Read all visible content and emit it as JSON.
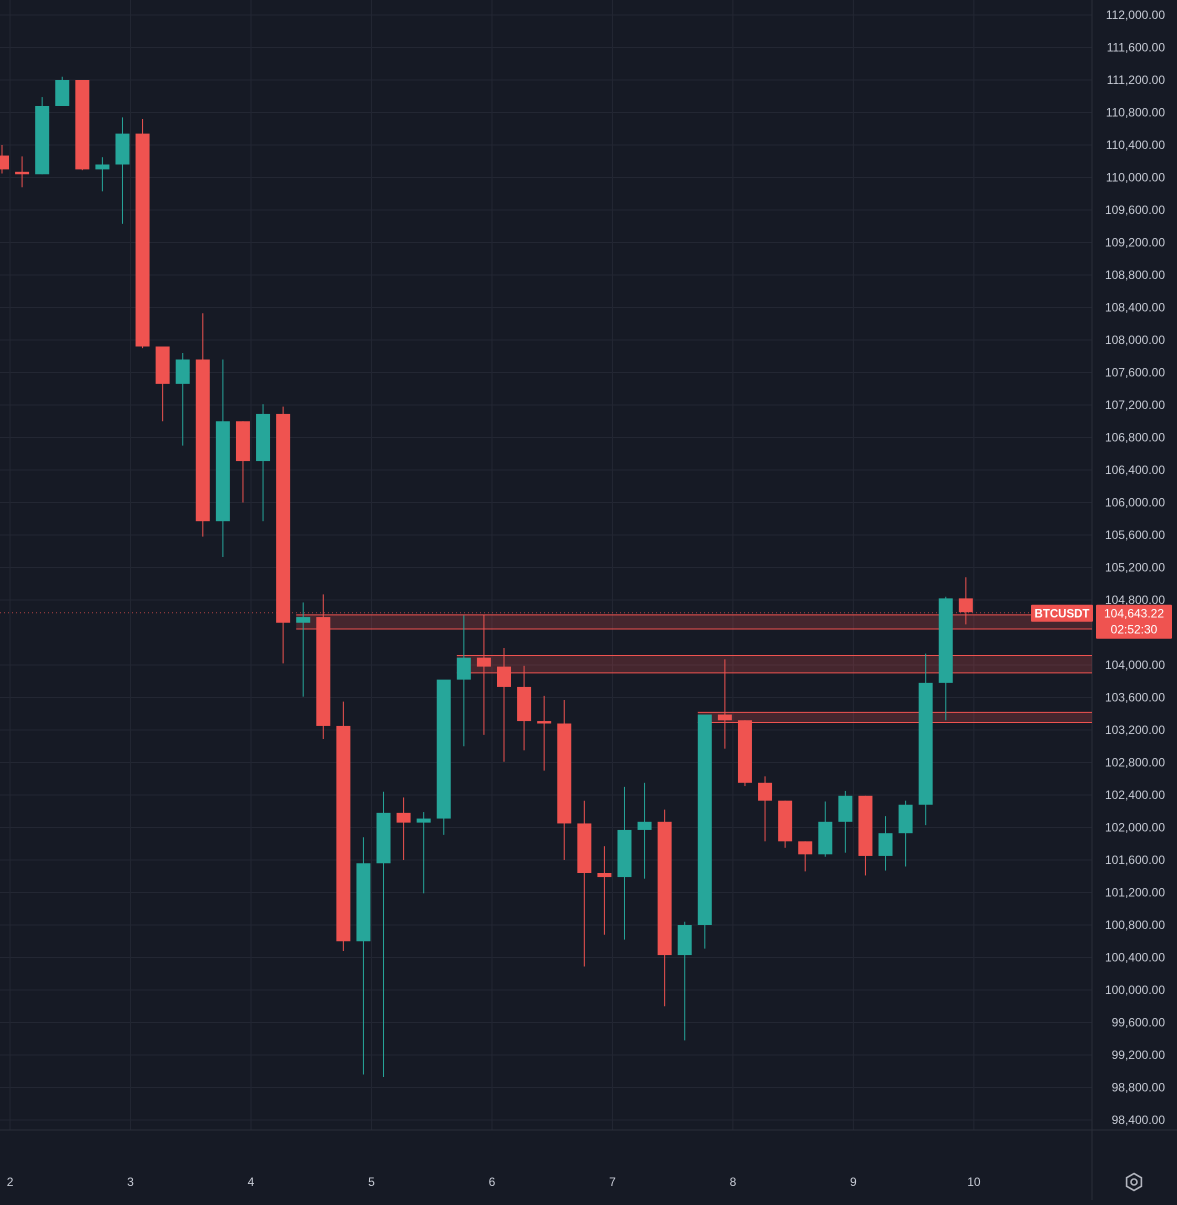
{
  "symbol": "BTCUSDT",
  "last_price_label": "104,643.22",
  "countdown": "02:52:30",
  "colors": {
    "background": "#161a25",
    "up": "#26a69a",
    "down": "#ef5350",
    "grid": "#232733",
    "axis_text": "#c8ccd6",
    "zone_fill": "rgba(239,83,80,0.22)",
    "zone_line": "#ef5350"
  },
  "settings_icon": "gear-icon",
  "chart_data": {
    "type": "candlestick",
    "grid": true,
    "price_axis": "right",
    "ylim": [
      98200,
      112050
    ],
    "x_ticks": [
      {
        "label": "2",
        "pos": 0.4
      },
      {
        "label": "3",
        "pos": 6.4
      },
      {
        "label": "4",
        "pos": 12.4
      },
      {
        "label": "5",
        "pos": 18.4
      },
      {
        "label": "6",
        "pos": 24.4
      },
      {
        "label": "7",
        "pos": 30.4
      },
      {
        "label": "8",
        "pos": 36.4
      },
      {
        "label": "9",
        "pos": 42.4
      },
      {
        "label": "10",
        "pos": 48.4
      }
    ],
    "y_ticks": [
      "112,000.00",
      "111,600.00",
      "111,200.00",
      "110,800.00",
      "110,400.00",
      "110,000.00",
      "109,600.00",
      "109,200.00",
      "108,800.00",
      "108,400.00",
      "108,000.00",
      "107,600.00",
      "107,200.00",
      "106,800.00",
      "106,400.00",
      "106,000.00",
      "105,600.00",
      "105,200.00",
      "104,800.00",
      "104,000.00",
      "103,600.00",
      "103,200.00",
      "102,800.00",
      "102,400.00",
      "102,000.00",
      "101,600.00",
      "101,200.00",
      "100,800.00",
      "100,400.00",
      "100,000.00",
      "99,600.00",
      "99,200.00",
      "98,800.00",
      "98,400.00"
    ],
    "candles": [
      {
        "o": 110270,
        "h": 110400,
        "l": 110050,
        "c": 110100
      },
      {
        "o": 110070,
        "h": 110260,
        "l": 109880,
        "c": 110040
      },
      {
        "o": 110040,
        "h": 110990,
        "l": 110040,
        "c": 110880
      },
      {
        "o": 110880,
        "h": 111240,
        "l": 110880,
        "c": 111200
      },
      {
        "o": 111200,
        "h": 111200,
        "l": 110090,
        "c": 110100
      },
      {
        "o": 110100,
        "h": 110250,
        "l": 109830,
        "c": 110160
      },
      {
        "o": 110160,
        "h": 110740,
        "l": 109430,
        "c": 110540
      },
      {
        "o": 110540,
        "h": 110720,
        "l": 107900,
        "c": 107920
      },
      {
        "o": 107920,
        "h": 107920,
        "l": 107000,
        "c": 107460
      },
      {
        "o": 107460,
        "h": 107840,
        "l": 106700,
        "c": 107760
      },
      {
        "o": 107760,
        "h": 108330,
        "l": 105580,
        "c": 105770
      },
      {
        "o": 105770,
        "h": 107760,
        "l": 105330,
        "c": 107000
      },
      {
        "o": 107000,
        "h": 107000,
        "l": 106000,
        "c": 106510
      },
      {
        "o": 106510,
        "h": 107210,
        "l": 105770,
        "c": 107090
      },
      {
        "o": 107090,
        "h": 107180,
        "l": 104020,
        "c": 104520
      },
      {
        "o": 104520,
        "h": 104770,
        "l": 103610,
        "c": 104590
      },
      {
        "o": 104590,
        "h": 104870,
        "l": 103090,
        "c": 103250
      },
      {
        "o": 103250,
        "h": 103550,
        "l": 100480,
        "c": 100600
      },
      {
        "o": 100600,
        "h": 101880,
        "l": 98960,
        "c": 101560
      },
      {
        "o": 101560,
        "h": 102440,
        "l": 98930,
        "c": 102180
      },
      {
        "o": 102180,
        "h": 102370,
        "l": 101600,
        "c": 102060
      },
      {
        "o": 102060,
        "h": 102190,
        "l": 101190,
        "c": 102110
      },
      {
        "o": 102110,
        "h": 103800,
        "l": 101910,
        "c": 103820
      },
      {
        "o": 103820,
        "h": 104610,
        "l": 103000,
        "c": 104090
      },
      {
        "o": 104090,
        "h": 104620,
        "l": 103140,
        "c": 103980
      },
      {
        "o": 103980,
        "h": 104210,
        "l": 102810,
        "c": 103730
      },
      {
        "o": 103730,
        "h": 103990,
        "l": 102950,
        "c": 103310
      },
      {
        "o": 103310,
        "h": 103620,
        "l": 102700,
        "c": 103280
      },
      {
        "o": 103280,
        "h": 103570,
        "l": 101600,
        "c": 102050
      },
      {
        "o": 102050,
        "h": 102330,
        "l": 100290,
        "c": 101440
      },
      {
        "o": 101440,
        "h": 101770,
        "l": 100680,
        "c": 101390
      },
      {
        "o": 101390,
        "h": 102500,
        "l": 100620,
        "c": 101970
      },
      {
        "o": 101970,
        "h": 102550,
        "l": 101370,
        "c": 102070
      },
      {
        "o": 102070,
        "h": 102220,
        "l": 99800,
        "c": 100430
      },
      {
        "o": 100430,
        "h": 100840,
        "l": 99380,
        "c": 100800
      },
      {
        "o": 100800,
        "h": 103380,
        "l": 100510,
        "c": 103390
      },
      {
        "o": 103390,
        "h": 104070,
        "l": 102970,
        "c": 103320
      },
      {
        "o": 103320,
        "h": 103320,
        "l": 102510,
        "c": 102550
      },
      {
        "o": 102550,
        "h": 102630,
        "l": 101830,
        "c": 102330
      },
      {
        "o": 102330,
        "h": 102330,
        "l": 101750,
        "c": 101830
      },
      {
        "o": 101830,
        "h": 101830,
        "l": 101460,
        "c": 101670
      },
      {
        "o": 101670,
        "h": 102320,
        "l": 101640,
        "c": 102070
      },
      {
        "o": 102070,
        "h": 102450,
        "l": 101690,
        "c": 102390
      },
      {
        "o": 102390,
        "h": 102390,
        "l": 101410,
        "c": 101650
      },
      {
        "o": 101650,
        "h": 102140,
        "l": 101470,
        "c": 101930
      },
      {
        "o": 101930,
        "h": 102330,
        "l": 101520,
        "c": 102280
      },
      {
        "o": 102280,
        "h": 104140,
        "l": 102030,
        "c": 103780
      },
      {
        "o": 103780,
        "h": 104840,
        "l": 103320,
        "c": 104820
      },
      {
        "o": 104820,
        "h": 105080,
        "l": 104500,
        "c": 104650
      }
    ],
    "zones": [
      {
        "low": 104480,
        "high": 104580,
        "start": 15
      },
      {
        "low": 103940,
        "high": 104080,
        "start": 23
      },
      {
        "low": 103330,
        "high": 103380,
        "start": 35
      }
    ],
    "last_price": 104643.22
  }
}
